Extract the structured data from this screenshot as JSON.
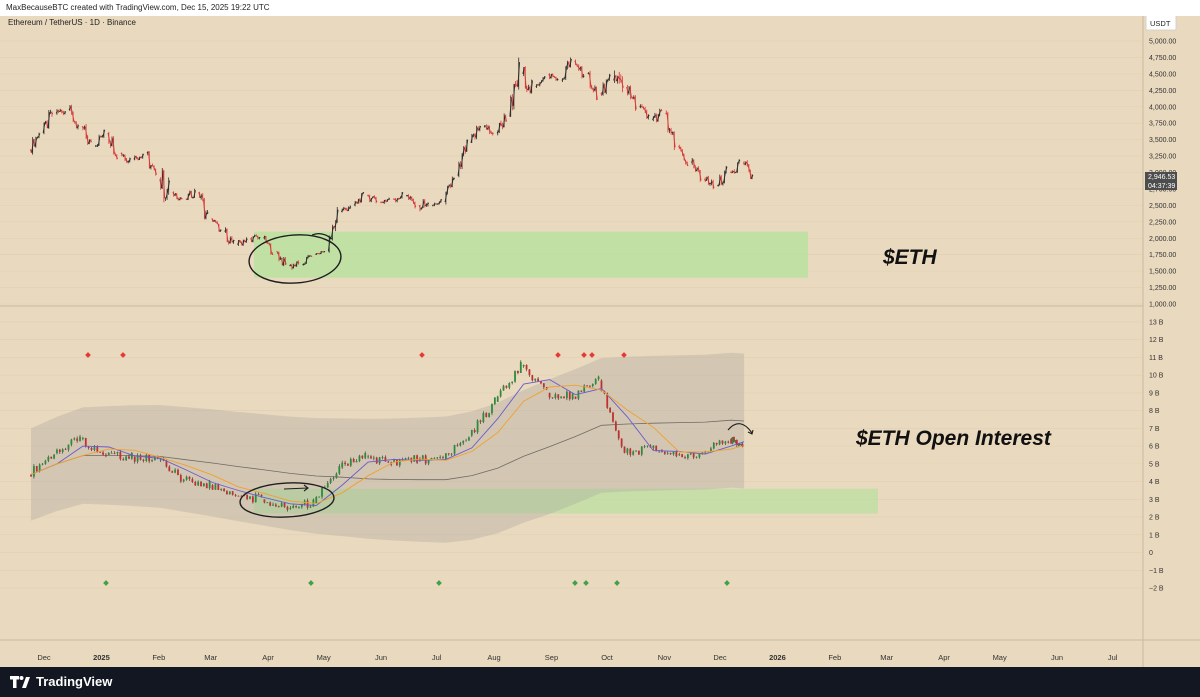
{
  "header": {
    "credit": "MaxBecauseBTC created with TradingView.com, Dec 15, 2025 19:22 UTC"
  },
  "footer": {
    "brand": "TradingView"
  },
  "colors": {
    "background": "#e9d9be",
    "zone": "#b9e0a0",
    "candle_up": "#2e2e2e",
    "candle_down": "#d83a3a",
    "accent": "#26a69a"
  },
  "chart_data": [
    {
      "type": "candlestick",
      "title": "Ethereum / TetherUS · 1D · Binance",
      "annotation": "$ETH",
      "currency_label": "USDT",
      "ylim": [
        1000,
        5000
      ],
      "y_ticks": [
        "5,000.00",
        "4,750.00",
        "4,500.00",
        "4,250.00",
        "4,000.00",
        "3,750.00",
        "3,500.00",
        "3,250.00",
        "3,000.00",
        "2,750.00",
        "2,500.00",
        "2,250.00",
        "2,000.00",
        "1,750.00",
        "1,500.00",
        "1,250.00",
        "1,000.00"
      ],
      "last_price": "2,946.53",
      "countdown": "04:37:39",
      "x_ticks": [
        "Dec",
        "2025",
        "Feb",
        "Mar",
        "Apr",
        "May",
        "Jun",
        "Jul",
        "Aug",
        "Sep",
        "Oct",
        "Nov",
        "Dec",
        "2026",
        "Feb",
        "Mar",
        "Apr",
        "May",
        "Jun",
        "Jul"
      ],
      "series": [
        {
          "x": [
            "2024-11-24",
            "2024-12-01",
            "2024-12-08",
            "2024-12-15",
            "2024-12-22",
            "2024-12-29",
            "2025-01-05",
            "2025-01-12",
            "2025-01-19",
            "2025-01-26",
            "2025-02-02",
            "2025-02-09",
            "2025-02-16",
            "2025-02-23",
            "2025-03-02",
            "2025-03-09",
            "2025-03-16",
            "2025-03-23",
            "2025-03-30",
            "2025-04-06",
            "2025-04-13",
            "2025-04-20",
            "2025-04-27",
            "2025-05-04",
            "2025-05-11",
            "2025-05-18",
            "2025-05-25",
            "2025-06-01",
            "2025-06-08",
            "2025-06-15",
            "2025-06-22",
            "2025-06-29",
            "2025-07-06",
            "2025-07-13",
            "2025-07-20",
            "2025-07-27",
            "2025-08-03",
            "2025-08-10",
            "2025-08-17",
            "2025-08-24",
            "2025-08-31",
            "2025-09-07",
            "2025-09-14",
            "2025-09-21",
            "2025-09-28",
            "2025-10-05",
            "2025-10-12",
            "2025-10-19",
            "2025-10-26",
            "2025-11-02",
            "2025-11-09",
            "2025-11-16",
            "2025-11-23",
            "2025-11-30",
            "2025-12-07",
            "2025-12-14"
          ],
          "open": [
            3350,
            3600,
            3900,
            3950,
            3700,
            3400,
            3600,
            3300,
            3200,
            3300,
            2900,
            2700,
            2600,
            2700,
            2300,
            2100,
            1900,
            2000,
            2000,
            1800,
            1580,
            1600,
            1750,
            1800,
            2400,
            2500,
            2650,
            2550,
            2600,
            2650,
            2500,
            2500,
            2550,
            2950,
            3450,
            3700,
            3600,
            3850,
            4500,
            4300,
            4500,
            4400,
            4700,
            4500,
            4200,
            4400,
            4300,
            4000,
            3800,
            3900,
            3400,
            3150,
            2900,
            2800,
            3000,
            3150
          ],
          "high": [
            3650,
            4000,
            4100,
            4050,
            3800,
            3650,
            3700,
            3450,
            3400,
            3400,
            3100,
            2800,
            2850,
            2800,
            2400,
            2200,
            2050,
            2150,
            2050,
            1850,
            1700,
            1780,
            1850,
            2500,
            2650,
            2700,
            2750,
            2700,
            2800,
            2700,
            2600,
            2600,
            3000,
            3500,
            3850,
            3900,
            3950,
            4750,
            4900,
            4500,
            4600,
            4750,
            4800,
            4550,
            4500,
            4700,
            4400,
            4200,
            4100,
            3950,
            3500,
            3300,
            3050,
            3150,
            3350,
            3250
          ],
          "low": [
            3250,
            3500,
            3800,
            3600,
            3300,
            3300,
            3200,
            3100,
            3100,
            2800,
            2100,
            2550,
            2550,
            2200,
            2100,
            1800,
            1750,
            1900,
            1750,
            1500,
            1400,
            1550,
            1700,
            1780,
            2350,
            2450,
            2500,
            2450,
            2500,
            2400,
            2200,
            2400,
            2500,
            2900,
            3400,
            3550,
            3500,
            3800,
            4200,
            4200,
            4300,
            4300,
            4400,
            4100,
            4100,
            3700,
            3900,
            3750,
            3750,
            3300,
            3100,
            2850,
            2650,
            2750,
            2950,
            2900
          ],
          "close": [
            3600,
            3900,
            3950,
            3700,
            3400,
            3600,
            3300,
            3200,
            3300,
            2900,
            2700,
            2600,
            2700,
            2300,
            2100,
            1900,
            2000,
            2000,
            1800,
            1580,
            1600,
            1750,
            1800,
            2400,
            2500,
            2650,
            2550,
            2600,
            2650,
            2500,
            2500,
            2550,
            2950,
            3450,
            3700,
            3600,
            3850,
            4500,
            4300,
            4500,
            4400,
            4700,
            4500,
            4200,
            4400,
            4300,
            4000,
            3800,
            3900,
            3400,
            3150,
            2900,
            2800,
            3000,
            3150,
            2947
          ]
        }
      ],
      "support_zone": {
        "from": 1400,
        "to": 2100,
        "x_start": "2025-03-27",
        "x_end": "2026-01-20"
      }
    },
    {
      "type": "candlestick",
      "title": "",
      "annotation": "$ETH Open Interest",
      "ylim": [
        -2,
        13
      ],
      "y_ticks": [
        "13 B",
        "12 B",
        "11 B",
        "10 B",
        "9 B",
        "8 B",
        "7 B",
        "6 B",
        "5 B",
        "4 B",
        "3 B",
        "2 B",
        "1 B",
        "0",
        "−1 B",
        "−2 B"
      ],
      "series": [
        {
          "x": [
            "2024-11-24",
            "2024-12-08",
            "2024-12-22",
            "2025-01-05",
            "2025-01-19",
            "2025-02-02",
            "2025-02-16",
            "2025-03-02",
            "2025-03-16",
            "2025-03-30",
            "2025-04-13",
            "2025-04-27",
            "2025-05-11",
            "2025-05-25",
            "2025-06-08",
            "2025-06-22",
            "2025-07-06",
            "2025-07-20",
            "2025-08-03",
            "2025-08-17",
            "2025-08-31",
            "2025-09-14",
            "2025-09-28",
            "2025-10-12",
            "2025-10-26",
            "2025-11-09",
            "2025-11-23",
            "2025-12-07",
            "2025-12-14"
          ],
          "value": [
            4.4,
            5.6,
            6.4,
            5.5,
            5.4,
            5.2,
            4.1,
            3.8,
            3.2,
            3.0,
            2.5,
            2.8,
            4.8,
            5.4,
            5.1,
            5.3,
            5.2,
            6.6,
            8.5,
            10.5,
            9.0,
            8.8,
            9.7,
            5.6,
            5.9,
            5.5,
            5.6,
            6.4,
            6.1
          ]
        }
      ],
      "support_zone": {
        "from": 2.2,
        "to": 3.6,
        "x_start": "2025-03-27",
        "x_end": "2026-02-05"
      }
    }
  ]
}
